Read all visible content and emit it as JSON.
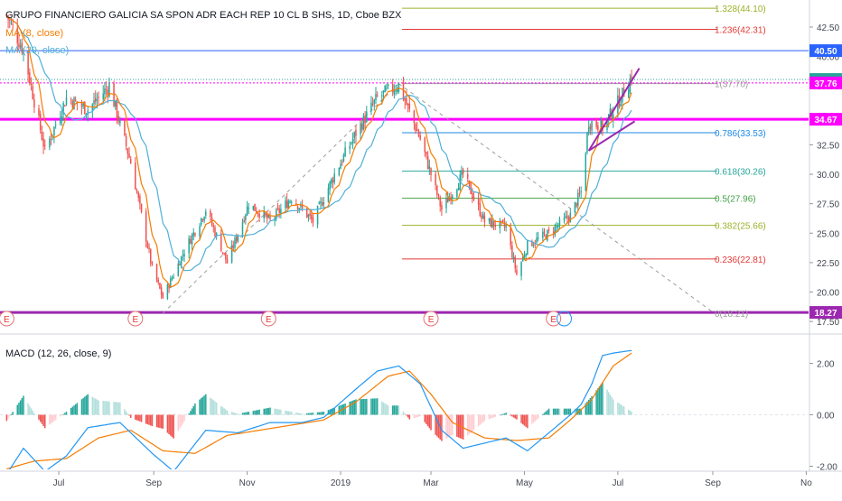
{
  "header": {
    "title": "GRUPO FINANCIERO GALICIA SA SPON ADR EACH REP 10 CL B SHS, 1D, Cboe BZX",
    "ma_fast": "MA (8, close)",
    "ma_slow": "MA (20, close)"
  },
  "macd_label": "MACD (12, 26, close, 9)",
  "x_axis_labels": [
    "Jul",
    "Sep",
    "Nov",
    "2019",
    "Mar",
    "May",
    "Jul",
    "Sep",
    "No"
  ],
  "earnings_marker": "E",
  "colors": {
    "up": "#26a69a",
    "down": "#ef5350",
    "ma_fast": "#f57c00",
    "ma_slow": "#4fb0d8",
    "magenta": "#ff00ff",
    "purple": "#9c27b0",
    "blue_level": "#2962ff",
    "macd": "#2196f3",
    "signal": "#f57c00"
  },
  "chart_data": [
    {
      "type": "candlestick",
      "title": "GRUPO FINANCIERO GALICIA SA SPON ADR EACH REP 10 CL B SHS, 1D, Cboe BZX",
      "ylim": [
        17,
        44.5
      ],
      "y_ticks": [
        "42.50",
        "40.00",
        "37.50",
        "35.00",
        "32.50",
        "30.00",
        "27.50",
        "25.00",
        "22.50",
        "20.00",
        "17.50"
      ],
      "price_waypoints": [
        {
          "date": "2018-05-28",
          "close": 43.5
        },
        {
          "date": "2018-06-08",
          "close": 40.5
        },
        {
          "date": "2018-06-22",
          "close": 32.0
        },
        {
          "date": "2018-07-06",
          "close": 36.5
        },
        {
          "date": "2018-07-20",
          "close": 35.5
        },
        {
          "date": "2018-08-03",
          "close": 37.5
        },
        {
          "date": "2018-08-17",
          "close": 31.0
        },
        {
          "date": "2018-08-31",
          "close": 22.0
        },
        {
          "date": "2018-09-07",
          "close": 19.5
        },
        {
          "date": "2018-09-21",
          "close": 23.5
        },
        {
          "date": "2018-10-05",
          "close": 27.0
        },
        {
          "date": "2018-10-19",
          "close": 22.5
        },
        {
          "date": "2018-11-02",
          "close": 27.5
        },
        {
          "date": "2018-11-16",
          "close": 26.0
        },
        {
          "date": "2018-11-30",
          "close": 28.0
        },
        {
          "date": "2018-12-14",
          "close": 26.0
        },
        {
          "date": "2018-12-28",
          "close": 30.0
        },
        {
          "date": "2019-01-11",
          "close": 33.5
        },
        {
          "date": "2019-01-25",
          "close": 36.5
        },
        {
          "date": "2019-02-08",
          "close": 37.6
        },
        {
          "date": "2019-02-22",
          "close": 33.0
        },
        {
          "date": "2019-03-08",
          "close": 27.0
        },
        {
          "date": "2019-03-22",
          "close": 30.0
        },
        {
          "date": "2019-04-05",
          "close": 26.0
        },
        {
          "date": "2019-04-19",
          "close": 25.5
        },
        {
          "date": "2019-04-26",
          "close": 21.5
        },
        {
          "date": "2019-05-03",
          "close": 24.0
        },
        {
          "date": "2019-05-17",
          "close": 25.0
        },
        {
          "date": "2019-05-31",
          "close": 26.5
        },
        {
          "date": "2019-06-07",
          "close": 28.5
        },
        {
          "date": "2019-06-12",
          "close": 34.5
        },
        {
          "date": "2019-06-21",
          "close": 34.0
        },
        {
          "date": "2019-07-03",
          "close": 36.5
        },
        {
          "date": "2019-07-10",
          "close": 38.3
        }
      ],
      "fibonacci": [
        {
          "ratio": "0",
          "value": 18.21,
          "label": "0(18.21)",
          "color": "#9e9e9e"
        },
        {
          "ratio": "0.236",
          "value": 22.81,
          "label": "0.236(22.81)",
          "color": "#e53935"
        },
        {
          "ratio": "0.382",
          "value": 25.66,
          "label": "0.382(25.66)",
          "color": "#9cb22b"
        },
        {
          "ratio": "0.5",
          "value": 27.96,
          "label": "0.5(27.96)",
          "color": "#43a047"
        },
        {
          "ratio": "0.618",
          "value": 30.26,
          "label": "0.618(30.26)",
          "color": "#26a69a"
        },
        {
          "ratio": "0.786",
          "value": 33.53,
          "label": "0.786(33.53)",
          "color": "#1e88e5"
        },
        {
          "ratio": "1",
          "value": 37.7,
          "label": "1(37.70)",
          "color": "#9e9e9e"
        },
        {
          "ratio": "1.236",
          "value": 42.31,
          "label": "1.236(42.31)",
          "color": "#e53935"
        },
        {
          "ratio": "1.328",
          "value": 44.1,
          "label": "1.328(44.10)",
          "color": "#9cb22b"
        }
      ],
      "horizontal_levels": [
        {
          "value": 40.5,
          "label": "40.50",
          "color": "#2962ff"
        },
        {
          "value": 38.05,
          "label": "38.05",
          "color": "#26a69a"
        },
        {
          "value": 37.76,
          "label": "37.76",
          "color": "#ff00ff"
        },
        {
          "value": 34.67,
          "label": "34.67",
          "color": "#ff00ff"
        },
        {
          "value": 18.27,
          "label": "18.27",
          "color": "#9c27b0"
        }
      ],
      "diagonals": [
        {
          "from": {
            "date": "2018-09-07",
            "value": 18.2
          },
          "to": {
            "date": "2019-02-08",
            "value": 37.7
          }
        },
        {
          "from": {
            "date": "2019-02-08",
            "value": 37.7
          },
          "to": {
            "date": "2019-09-01",
            "value": 18.3
          }
        }
      ],
      "channel_lines": [
        {
          "from": {
            "date": "2019-06-12",
            "value": 32.0
          },
          "to": {
            "date": "2019-07-15",
            "value": 39.0
          }
        },
        {
          "from": {
            "date": "2019-06-12",
            "value": 32.0
          },
          "to": {
            "date": "2019-07-12",
            "value": 34.5
          }
        }
      ],
      "earnings_dates": [
        "2018-05-28",
        "2018-08-20",
        "2018-11-15",
        "2019-03-01",
        "2019-05-20"
      ],
      "dividend_date": "2019-05-27"
    },
    {
      "type": "line",
      "title": "MACD (12, 26, close, 9)",
      "ylim": [
        -2.3,
        2.9
      ],
      "y_ticks": [
        "2.00",
        "0.00",
        "-2.00"
      ],
      "macd_waypoints": [
        {
          "date": "2018-05-28",
          "value": -2.3
        },
        {
          "date": "2018-06-08",
          "value": -1.3
        },
        {
          "date": "2018-06-22",
          "value": -2.2
        },
        {
          "date": "2018-07-06",
          "value": -1.6
        },
        {
          "date": "2018-07-20",
          "value": -0.5
        },
        {
          "date": "2018-08-10",
          "value": -0.3
        },
        {
          "date": "2018-08-31",
          "value": -1.5
        },
        {
          "date": "2018-09-14",
          "value": -2.2
        },
        {
          "date": "2018-10-05",
          "value": -0.6
        },
        {
          "date": "2018-10-26",
          "value": -0.7
        },
        {
          "date": "2018-11-16",
          "value": -0.3
        },
        {
          "date": "2018-12-07",
          "value": -0.3
        },
        {
          "date": "2018-12-21",
          "value": -0.1
        },
        {
          "date": "2019-01-11",
          "value": 1.0
        },
        {
          "date": "2019-01-25",
          "value": 1.7
        },
        {
          "date": "2019-02-08",
          "value": 1.9
        },
        {
          "date": "2019-02-22",
          "value": 1.2
        },
        {
          "date": "2019-03-08",
          "value": -0.6
        },
        {
          "date": "2019-03-22",
          "value": -1.3
        },
        {
          "date": "2019-04-05",
          "value": -1.1
        },
        {
          "date": "2019-04-19",
          "value": -0.9
        },
        {
          "date": "2019-05-03",
          "value": -1.4
        },
        {
          "date": "2019-05-17",
          "value": -0.7
        },
        {
          "date": "2019-05-31",
          "value": 0.0
        },
        {
          "date": "2019-06-07",
          "value": 0.4
        },
        {
          "date": "2019-06-14",
          "value": 1.2
        },
        {
          "date": "2019-06-21",
          "value": 2.3
        },
        {
          "date": "2019-06-28",
          "value": 2.4
        },
        {
          "date": "2019-07-10",
          "value": 2.5
        }
      ],
      "signal_waypoints": [
        {
          "date": "2018-05-28",
          "value": -2.1
        },
        {
          "date": "2018-06-15",
          "value": -1.8
        },
        {
          "date": "2018-07-06",
          "value": -1.7
        },
        {
          "date": "2018-07-27",
          "value": -0.9
        },
        {
          "date": "2018-08-17",
          "value": -0.6
        },
        {
          "date": "2018-09-07",
          "value": -1.4
        },
        {
          "date": "2018-09-28",
          "value": -1.5
        },
        {
          "date": "2018-10-19",
          "value": -0.8
        },
        {
          "date": "2018-11-09",
          "value": -0.6
        },
        {
          "date": "2018-11-30",
          "value": -0.4
        },
        {
          "date": "2018-12-21",
          "value": -0.2
        },
        {
          "date": "2019-01-11",
          "value": 0.5
        },
        {
          "date": "2019-02-01",
          "value": 1.5
        },
        {
          "date": "2019-02-15",
          "value": 1.7
        },
        {
          "date": "2019-03-01",
          "value": 0.8
        },
        {
          "date": "2019-03-15",
          "value": -0.3
        },
        {
          "date": "2019-04-05",
          "value": -0.9
        },
        {
          "date": "2019-04-26",
          "value": -1.0
        },
        {
          "date": "2019-05-17",
          "value": -0.9
        },
        {
          "date": "2019-05-31",
          "value": -0.2
        },
        {
          "date": "2019-06-14",
          "value": 0.6
        },
        {
          "date": "2019-06-28",
          "value": 1.9
        },
        {
          "date": "2019-07-10",
          "value": 2.4
        }
      ]
    }
  ]
}
